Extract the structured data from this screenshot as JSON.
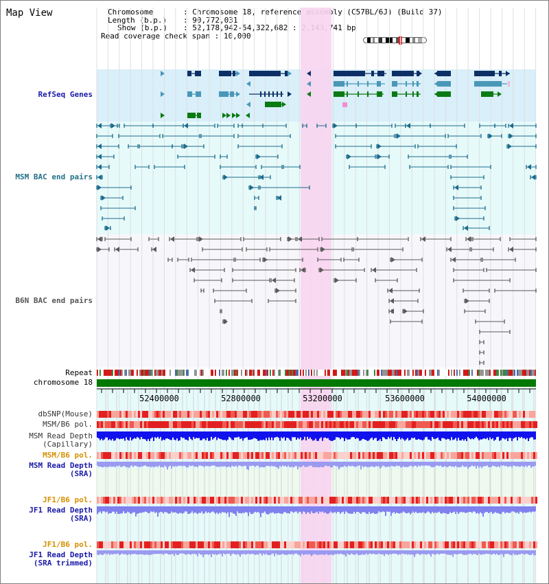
{
  "view": {
    "title": "Map View",
    "chromosome_key": "Chromosome",
    "chromosome_value": "Chromosome 18, reference assembly (C57BL/6J) (Build 37)",
    "length_key": "Length (b.p.)",
    "length_value": "90,772,031",
    "show_key": "Show (b.p.)",
    "show_value": "52,178,942-54,322,682 : 2,143,741 bp",
    "span_key": "Read coverage check span",
    "span_value": "10,000"
  },
  "tracks": {
    "refseq": "RefSeq Genes",
    "msm_bac": "MSM BAC end pairs",
    "b6n_bac": "B6N BAC end pairs",
    "repeat": "Repeat",
    "chrom": "chromosome 18",
    "dbsnp": "dbSNP(Mouse)",
    "msm_b6_pol": "MSM/B6 pol.",
    "msm_depth_cap_1": "MSM Read Depth",
    "msm_depth_cap_2": "(Capillary)",
    "msm_b6_pol_sra": "MSM/B6 pol.",
    "msm_depth_sra_1": "MSM Read Depth",
    "msm_depth_sra_2": "(SRA)",
    "jf1_b6_pol": "JF1/B6 pol.",
    "jf1_depth_sra_1": "JF1 Read Depth",
    "jf1_depth_sra_2": "(SRA)",
    "jf1_b6_pol_trim": "JF1/B6 pol.",
    "jf1_depth_trim_1": "JF1 Read Depth",
    "jf1_depth_trim_2": "(SRA trimmed)"
  },
  "axis": {
    "ticks": [
      "52400000",
      "52800000",
      "53200000",
      "53600000",
      "54000000"
    ]
  },
  "colors": {
    "refseq_bg": "#d9effa",
    "bac_bg": "#e6fafa",
    "b6n_bg": "#f7f7fb",
    "highlight": "#f8d4f0",
    "gene_dark": "#0c2f66",
    "gene_mid": "#4a97b8",
    "gene_green": "#0a7a12",
    "msm_line": "#1c6b8c",
    "b6n_line": "#5a5a5a",
    "chrom_bar": "#037903",
    "read_depth_blue": "#1111ee",
    "sra_depth": "#8a8aee",
    "label_blue": "#1a1aa8",
    "label_teal": "#22708a",
    "label_orange": "#d69000"
  }
}
